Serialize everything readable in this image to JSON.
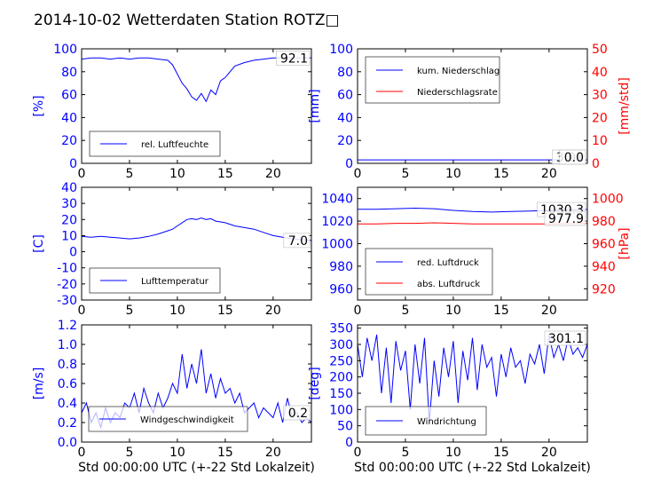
{
  "title": "2014-10-02 Wetterdaten Station ROTZ□",
  "colors": {
    "left": "#0000ff",
    "right": "#ff0000",
    "frame": "#000000"
  },
  "chart_data": [
    {
      "type": "line",
      "ylabel": "[%]",
      "xlim": [
        0,
        24
      ],
      "ylim": [
        0,
        100
      ],
      "xticks": [
        0,
        5,
        10,
        15,
        20
      ],
      "yticks": [
        0,
        20,
        40,
        60,
        80,
        100
      ],
      "last_value": "92.1",
      "legend": [
        {
          "label": "rel. Luftfeuchte",
          "color": "#0000ff"
        }
      ],
      "legend_position": "lower-center",
      "series": [
        {
          "name": "rel. Luftfeuchte",
          "color": "#0000ff",
          "x": [
            0,
            1,
            2,
            3,
            4,
            5,
            6,
            7,
            8,
            9,
            9.5,
            10,
            10.5,
            11,
            11.5,
            12,
            12.5,
            13,
            13.5,
            14,
            14.5,
            15,
            15.5,
            16,
            17,
            18,
            19,
            20,
            21,
            22,
            23,
            24
          ],
          "y": [
            91,
            92,
            92,
            91,
            92,
            91,
            92,
            92,
            91,
            90,
            86,
            78,
            70,
            65,
            58,
            55,
            61,
            54,
            64,
            60,
            72,
            75,
            80,
            85,
            88,
            90,
            91,
            92,
            92,
            92,
            92,
            92
          ]
        }
      ]
    },
    {
      "type": "line",
      "ylabel": "[mm]",
      "ylabel2": "[mm/std]",
      "xlim": [
        0,
        24
      ],
      "ylim": [
        0,
        100
      ],
      "ylim2": [
        0,
        50
      ],
      "xticks": [
        0,
        5,
        10,
        15,
        20
      ],
      "yticks": [
        0,
        20,
        40,
        60,
        80,
        100
      ],
      "yticks2": [
        0,
        10,
        20,
        30,
        40,
        50
      ],
      "last_value": "3.01",
      "last_value2": "0.0",
      "legend": [
        {
          "label": "kum. Niederschlag",
          "color": "#0000ff"
        },
        {
          "label": "Niederschlagsrate",
          "color": "#ff0000"
        }
      ],
      "legend_position": "upper-left",
      "series": [
        {
          "name": "kum. Niederschlag",
          "color": "#0000ff",
          "axis": "left",
          "x": [
            0,
            24
          ],
          "y": [
            3.0,
            3.0
          ]
        },
        {
          "name": "Niederschlagsrate",
          "color": "#ff0000",
          "axis": "right",
          "x": [
            0,
            24
          ],
          "y": [
            0,
            0
          ]
        }
      ]
    },
    {
      "type": "line",
      "ylabel": "[C]",
      "xlim": [
        0,
        24
      ],
      "ylim": [
        -30,
        40
      ],
      "xticks": [
        0,
        5,
        10,
        15,
        20
      ],
      "yticks": [
        -30,
        -20,
        -10,
        0,
        10,
        20,
        30,
        40
      ],
      "last_value": "7.0",
      "legend": [
        {
          "label": "Lufttemperatur",
          "color": "#0000ff"
        }
      ],
      "legend_position": "lower-center",
      "series": [
        {
          "name": "Lufttemperatur",
          "color": "#0000ff",
          "x": [
            0,
            1,
            2,
            3,
            4,
            5,
            6,
            7,
            8,
            9,
            9.5,
            10,
            10.5,
            11,
            11.5,
            12,
            12.5,
            13,
            13.5,
            14,
            14.5,
            15,
            16,
            17,
            18,
            19,
            20,
            21,
            22,
            23,
            24
          ],
          "y": [
            9.5,
            9,
            9.5,
            9,
            8.5,
            8,
            8.5,
            9.5,
            11,
            13,
            14,
            16,
            18,
            20,
            20.5,
            20,
            21,
            20,
            20.5,
            19,
            18.5,
            18,
            16,
            15,
            14,
            12,
            10,
            9,
            8,
            7.5,
            7
          ]
        }
      ]
    },
    {
      "type": "line",
      "ylabel2": "[hPa]",
      "xlim": [
        0,
        24
      ],
      "ylim": [
        950,
        1050
      ],
      "ylim2": [
        910,
        1010
      ],
      "xticks": [
        0,
        5,
        10,
        15,
        20
      ],
      "yticks": [
        960,
        980,
        1000,
        1020,
        1040
      ],
      "yticks2": [
        920,
        940,
        960,
        980,
        1000
      ],
      "last_value": "1030.3",
      "last_value2": "977.9",
      "legend": [
        {
          "label": "red. Luftdruck",
          "color": "#0000ff"
        },
        {
          "label": "abs. Luftdruck",
          "color": "#ff0000"
        }
      ],
      "legend_position": "lower-left",
      "series": [
        {
          "name": "red. Luftdruck",
          "color": "#0000ff",
          "axis": "left",
          "x": [
            0,
            2,
            4,
            6,
            8,
            10,
            12,
            14,
            16,
            18,
            20,
            22,
            24
          ],
          "y": [
            1030.5,
            1030.5,
            1031,
            1031.5,
            1031,
            1029.5,
            1028.5,
            1028,
            1028.5,
            1029,
            1029.5,
            1030,
            1030.3
          ]
        },
        {
          "name": "abs. Luftdruck",
          "color": "#ff0000",
          "axis": "right",
          "x": [
            0,
            2,
            4,
            6,
            8,
            10,
            12,
            14,
            16,
            18,
            20,
            22,
            24
          ],
          "y": [
            977.5,
            977.5,
            978,
            978,
            978.5,
            978,
            977.5,
            977.5,
            977.5,
            977.5,
            977.5,
            977.8,
            977.9
          ]
        }
      ]
    },
    {
      "type": "line",
      "ylabel": "[m/s]",
      "xlabel": "Std 00:00:00 UTC (+-22 Std Lokalzeit)",
      "xlim": [
        0,
        24
      ],
      "ylim": [
        0,
        1.2
      ],
      "xticks": [
        0,
        5,
        10,
        15,
        20
      ],
      "yticks": [
        0.0,
        0.2,
        0.4,
        0.6,
        0.8,
        1.0,
        1.2
      ],
      "last_value": "0.2",
      "legend": [
        {
          "label": "Windgeschwindigkeit",
          "color": "#0000ff"
        }
      ],
      "legend_position": "lower-center",
      "series": [
        {
          "name": "Windgeschwindigkeit",
          "color": "#0000ff",
          "x": [
            0,
            0.5,
            1,
            1.5,
            2,
            2.5,
            3,
            3.5,
            4,
            4.5,
            5,
            5.5,
            6,
            6.5,
            7,
            7.5,
            8,
            8.5,
            9,
            9.5,
            10,
            10.5,
            11,
            11.5,
            12,
            12.5,
            13,
            13.5,
            14,
            14.5,
            15,
            15.5,
            16,
            16.5,
            17,
            17.5,
            18,
            18.5,
            19,
            19.5,
            20,
            20.5,
            21,
            21.5,
            22,
            22.5,
            23,
            23.5,
            24
          ],
          "y": [
            0.3,
            0.4,
            0.2,
            0.3,
            0.15,
            0.35,
            0.2,
            0.3,
            0.25,
            0.4,
            0.35,
            0.5,
            0.3,
            0.55,
            0.4,
            0.3,
            0.5,
            0.35,
            0.45,
            0.6,
            0.5,
            0.9,
            0.55,
            0.8,
            0.6,
            0.95,
            0.5,
            0.7,
            0.45,
            0.65,
            0.5,
            0.55,
            0.4,
            0.5,
            0.3,
            0.35,
            0.4,
            0.25,
            0.35,
            0.3,
            0.25,
            0.4,
            0.2,
            0.45,
            0.25,
            0.3,
            0.2,
            0.25,
            0.2
          ]
        }
      ]
    },
    {
      "type": "line",
      "ylabel": "[deg]",
      "xlabel": "Std 00:00:00 UTC (+-22 Std Lokalzeit)",
      "xlim": [
        0,
        24
      ],
      "ylim": [
        0,
        360
      ],
      "xticks": [
        0,
        5,
        10,
        15,
        20
      ],
      "yticks": [
        0,
        50,
        100,
        150,
        200,
        250,
        300,
        350
      ],
      "last_value": "301.1",
      "legend": [
        {
          "label": "Windrichtung",
          "color": "#0000ff"
        }
      ],
      "legend_position": "lower-left",
      "series": [
        {
          "name": "Windrichtung",
          "color": "#0000ff",
          "x": [
            0,
            0.5,
            1,
            1.5,
            2,
            2.5,
            3,
            3.5,
            4,
            4.5,
            5,
            5.5,
            6,
            6.5,
            7,
            7.5,
            8,
            8.5,
            9,
            9.5,
            10,
            10.5,
            11,
            11.5,
            12,
            12.5,
            13,
            13.5,
            14,
            14.5,
            15,
            15.5,
            16,
            16.5,
            17,
            17.5,
            18,
            18.5,
            19,
            19.5,
            20,
            20.5,
            21,
            21.5,
            22,
            22.5,
            23,
            23.5,
            24
          ],
          "y": [
            300,
            200,
            320,
            250,
            330,
            150,
            290,
            120,
            310,
            220,
            280,
            100,
            300,
            180,
            320,
            60,
            250,
            140,
            290,
            200,
            310,
            120,
            280,
            190,
            320,
            160,
            300,
            230,
            260,
            140,
            270,
            200,
            290,
            230,
            250,
            180,
            270,
            240,
            300,
            210,
            330,
            260,
            300,
            250,
            320,
            270,
            290,
            260,
            300
          ]
        }
      ]
    }
  ]
}
